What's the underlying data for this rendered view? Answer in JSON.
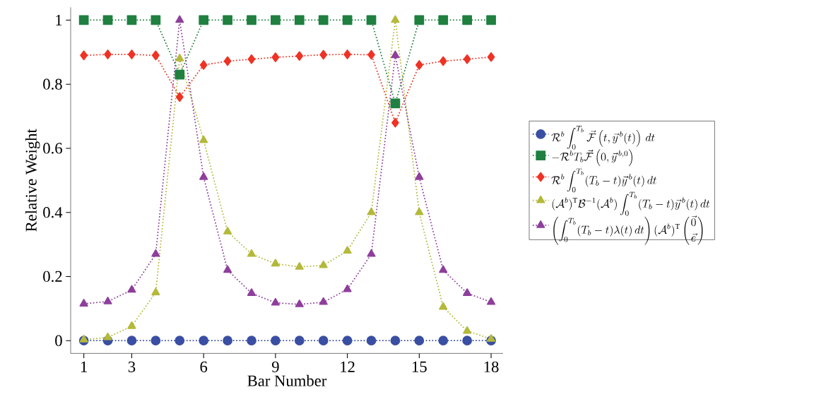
{
  "chart_data": {
    "type": "line",
    "xlabel": "Bar Number",
    "ylabel": "Relative Weight",
    "x": [
      1,
      2,
      3,
      4,
      5,
      6,
      7,
      8,
      9,
      10,
      11,
      12,
      13,
      14,
      15,
      16,
      17,
      18
    ],
    "xlim": [
      0.45,
      18.5
    ],
    "xticks": [
      1,
      3,
      6,
      9,
      12,
      15,
      18
    ],
    "ylim": [
      -0.04,
      1.04
    ],
    "yticks": [
      0,
      0.2,
      0.4,
      0.6,
      0.8,
      1
    ],
    "legend": "right",
    "line_style": "dotted",
    "grid": false,
    "series": [
      {
        "name": "\\mathcal{R}^b\\int_0^{T_b}\\vec{\\mathcal{F}}\\left(t,\\vec{y}^{\\,b}(t)\\right)\\,dt",
        "color": "#3a4fa3",
        "marker": "circle",
        "values": [
          0,
          0,
          0,
          0,
          0,
          0,
          0,
          0,
          0,
          0,
          0,
          0,
          0,
          0,
          0,
          0,
          0,
          0
        ]
      },
      {
        "name": "-\\mathcal{R}^b T_b\\vec{\\mathcal{F}}\\left(0,\\vec{y}^{\\,b,0}\\right)",
        "color": "#1f8040",
        "marker": "square",
        "values": [
          1,
          1,
          1,
          1,
          0.83,
          1,
          1,
          1,
          1,
          1,
          1,
          1,
          1,
          0.74,
          1,
          1,
          1,
          1
        ]
      },
      {
        "name": "\\mathcal{R}^b\\int_0^{T_b}(T_b-t)\\vec{y}^{\\,b}(t)\\,dt",
        "color": "#ee3325",
        "marker": "diamond",
        "values": [
          0.89,
          0.893,
          0.893,
          0.89,
          0.76,
          0.86,
          0.872,
          0.878,
          0.884,
          0.888,
          0.892,
          0.893,
          0.892,
          0.68,
          0.86,
          0.872,
          0.878,
          0.885
        ]
      },
      {
        "name": "(\\mathcal{A}^b)^{\\mathrm{T}}\\mathcal{B}^{-1}(\\mathcal{A}^b)\\int_0^{T_b}(T_b-t)\\vec{y}^{\\,b}(t)\\,dt",
        "color": "#b3b93a",
        "marker": "triangle",
        "values": [
          0.003,
          0.01,
          0.045,
          0.15,
          0.88,
          0.625,
          0.34,
          0.27,
          0.24,
          0.23,
          0.235,
          0.28,
          0.4,
          1.0,
          0.4,
          0.105,
          0.03,
          0.005
        ]
      },
      {
        "name": "\\left(\\int_0^{T_b}(T_b-t)\\lambda(t)\\,dt\\right)(\\mathcal{A}^b)^{\\mathrm{T}}\\left({\\vec{0}\\atop\\vec{e}}\\right)",
        "color": "#8e3f9b",
        "marker": "triangle down",
        "values": [
          0.115,
          0.122,
          0.158,
          0.27,
          1.0,
          0.51,
          0.22,
          0.148,
          0.118,
          0.113,
          0.12,
          0.16,
          0.27,
          0.89,
          0.51,
          0.22,
          0.148,
          0.12
        ]
      }
    ]
  }
}
